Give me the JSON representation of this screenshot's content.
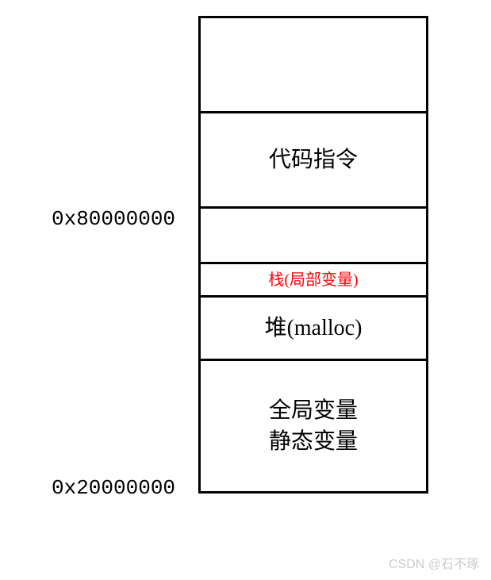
{
  "diagram": {
    "type": "memory-layout",
    "border_color": "#000000",
    "border_width": 3,
    "background_color": "#ffffff",
    "font_family_labels": "SimSun",
    "font_family_addresses": "Courier New",
    "segments": [
      {
        "id": "empty-top",
        "label": "",
        "height": 120,
        "text_color": "#000000",
        "font_size": 28
      },
      {
        "id": "code",
        "label": "代码指令",
        "height": 120,
        "text_color": "#000000",
        "font_size": 28
      },
      {
        "id": "gap",
        "label": "",
        "height": 70,
        "text_color": "#000000",
        "font_size": 28
      },
      {
        "id": "stack",
        "label": "栈(局部变量)",
        "height": 42,
        "text_color": "#fb0106",
        "font_size": 20
      },
      {
        "id": "heap",
        "label": "堆(malloc)",
        "height": 80,
        "text_color": "#000000",
        "font_size": 28
      },
      {
        "id": "globals",
        "label_line1": "全局变量",
        "label_line2": "静态变量",
        "height": 170,
        "text_color": "#000000",
        "font_size": 28
      }
    ],
    "addresses": [
      {
        "id": "high",
        "value": "0x80000000",
        "align_segment": "code-bottom",
        "font_size": 26,
        "color": "#000000"
      },
      {
        "id": "low",
        "value": "0x20000000",
        "align_segment": "globals-bottom",
        "font_size": 26,
        "color": "#000000"
      }
    ]
  },
  "watermark": {
    "text": "CSDN @石不琢",
    "color": "#cccccc",
    "font_size": 16
  }
}
